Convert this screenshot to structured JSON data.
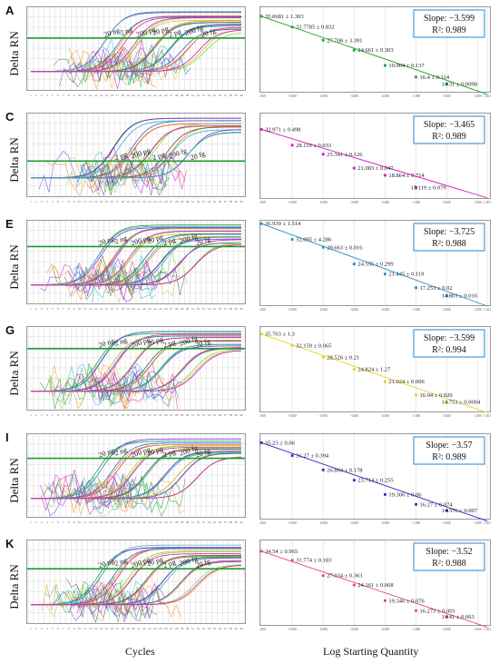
{
  "footer": {
    "left": "Cycles",
    "right": "Log Starting Quantity"
  },
  "axis_ylabel": "Delta RN",
  "cycle_ticks": [
    "1",
    "2",
    "3",
    "4",
    "5",
    "6",
    "7",
    "8",
    "9",
    "10",
    "11",
    "12",
    "13",
    "14",
    "15",
    "16",
    "17",
    "18",
    "19",
    "20",
    "21",
    "22",
    "23",
    "24",
    "25",
    "26",
    "27",
    "28",
    "29",
    "30",
    "31",
    "32",
    "33",
    "34",
    "35",
    "36",
    "37",
    "38",
    "39",
    "40"
  ],
  "std_ticks": [
    "-6.000",
    "-5.000",
    "-4.000",
    "-3.000",
    "-2.000",
    "-1.000",
    "0.000",
    "1.000",
    "1.301"
  ],
  "chart_data": [
    {
      "id": "A",
      "type": "line",
      "ylabel": "Delta RN",
      "xlabel": "Cycles",
      "threshold_frac": 0.38,
      "color": "#8a2be2",
      "curve_labels": [
        "20 ng",
        "2 ng",
        "200 pg",
        "20 pg",
        "2 pg",
        "200 fg",
        "20 fg"
      ],
      "onsets": [
        14,
        17,
        20,
        23,
        26,
        29,
        32
      ]
    },
    {
      "id": "B",
      "type": "scatter",
      "xlabel": "Log Starting Quantity",
      "color": "#1aa329",
      "slope": "Slope: −3.599",
      "r2": "R²:  0.989",
      "points": [
        {
          "x": -6.0,
          "y": 35.0681,
          "label": "35.0681 ± 1.303"
        },
        {
          "x": -5.0,
          "y": 31.7785,
          "label": "31.7785 ± 0.832"
        },
        {
          "x": -4.0,
          "y": 27.708,
          "label": "27.708 ± 3.391"
        },
        {
          "x": -3.0,
          "y": 24.661,
          "label": "24.661 ± 0.303"
        },
        {
          "x": -2.0,
          "y": 19.964,
          "label": "19.964 ± 0.137"
        },
        {
          "x": -1.0,
          "y": 16.4,
          "label": "16.4 ± 0.114"
        },
        {
          "x": 0.0,
          "y": 14.31,
          "label": "14.31 ± 0.0098"
        }
      ]
    },
    {
      "id": "C",
      "type": "line",
      "ylabel": "Delta RN",
      "xlabel": "Cycles",
      "threshold_frac": 0.58,
      "color": "#9a6acc",
      "curve_labels": [
        "2 pg",
        "200 pg",
        "2 pg",
        "200 fg",
        "20 fg"
      ],
      "onsets": [
        16,
        19,
        23,
        26,
        30
      ]
    },
    {
      "id": "D",
      "type": "scatter",
      "xlabel": "Log Starting Quantity",
      "color": "#d214c8",
      "slope": "Slope: −3.465",
      "r2": "R²:  0.989",
      "points": [
        {
          "x": -6.0,
          "y": 32.971,
          "label": "32.971 ± 0.498"
        },
        {
          "x": -5.0,
          "y": 28.119,
          "label": "28.119 ± 0.033"
        },
        {
          "x": -4.0,
          "y": 25.341,
          "label": "25.341 ± 0.126"
        },
        {
          "x": -3.0,
          "y": 21.083,
          "label": "21.083 ± 0.047"
        },
        {
          "x": -2.0,
          "y": 18.864,
          "label": "18.864 ± 0.714"
        },
        {
          "x": -1.0,
          "y": 15.119,
          "label": "15.119 ± 0.079"
        }
      ]
    },
    {
      "id": "E",
      "type": "line",
      "ylabel": "Delta RN",
      "xlabel": "Cycles",
      "threshold_frac": 0.32,
      "color": "#e91e8c",
      "curve_labels": [
        "20 ng",
        "2 ng",
        "200 pg",
        "20 pg",
        "2 pg",
        "200 fg",
        "20 fg"
      ],
      "onsets": [
        13,
        16,
        19,
        22,
        25,
        28,
        31
      ]
    },
    {
      "id": "F",
      "type": "scatter",
      "xlabel": "Log Starting Quantity",
      "color": "#1e8fd0",
      "slope": "Slope: −3.725",
      "r2": "R²:  0.988",
      "points": [
        {
          "x": -6.0,
          "y": 36.939,
          "label": "36.939 ± 1.514"
        },
        {
          "x": -5.0,
          "y": 32.095,
          "label": "32.095 ± 4.286"
        },
        {
          "x": -4.0,
          "y": 29.663,
          "label": "29.663 ± 0.016"
        },
        {
          "x": -3.0,
          "y": 24.555,
          "label": "24.555 ± 0.299"
        },
        {
          "x": -2.0,
          "y": 21.445,
          "label": "21.445 ± 0.119"
        },
        {
          "x": -1.0,
          "y": 17.253,
          "label": "17.253 ± 0.02"
        },
        {
          "x": 0.0,
          "y": 14.803,
          "label": "14.803 ± 0.016"
        }
      ]
    },
    {
      "id": "G",
      "type": "line",
      "ylabel": "Delta RN",
      "xlabel": "Cycles",
      "threshold_frac": 0.27,
      "color": "#3cb4c8",
      "curve_labels": [
        "20 ng",
        "2 ng",
        "200 pg",
        "20 pg",
        "2 pg",
        "200 fg",
        "20 fg"
      ],
      "onsets": [
        13,
        16,
        19,
        22,
        25,
        28,
        31
      ]
    },
    {
      "id": "H",
      "type": "scatter",
      "xlabel": "Log Starting Quantity",
      "color": "#e6d21e",
      "slope": "Slope: −3.599",
      "r2": "R²:  0.994",
      "points": [
        {
          "x": -6.0,
          "y": 35.703,
          "label": "35.703 ± 1.3"
        },
        {
          "x": -5.0,
          "y": 32.159,
          "label": "32.159 ± 0.065"
        },
        {
          "x": -4.0,
          "y": 28.526,
          "label": "28.526 ± 0.21"
        },
        {
          "x": -3.0,
          "y": 24.824,
          "label": "24.824 ± 1.27"
        },
        {
          "x": -2.0,
          "y": 21.024,
          "label": "21.024 ± 0.006"
        },
        {
          "x": -1.0,
          "y": 16.94,
          "label": "16.94 ± 0.020"
        },
        {
          "x": 0.0,
          "y": 14.753,
          "label": "14.753 ± 0.0004"
        }
      ]
    },
    {
      "id": "I",
      "type": "line",
      "ylabel": "Delta RN",
      "xlabel": "Cycles",
      "threshold_frac": 0.3,
      "color": "#2c6ed0",
      "curve_labels": [
        "20 ng",
        "2 ng",
        "200 pg",
        "20 pg",
        "2 pg",
        "200 fg",
        "20 fg"
      ],
      "onsets": [
        13,
        16,
        19,
        22,
        25,
        28,
        31
      ]
    },
    {
      "id": "J",
      "type": "scatter",
      "xlabel": "Log Starting Quantity",
      "color": "#2a2ac8",
      "slope": "Slope: −3.57",
      "r2": "R²:  0.989",
      "points": [
        {
          "x": -6.0,
          "y": 35.23,
          "label": "35.23 ± 0.06"
        },
        {
          "x": -5.0,
          "y": 31.27,
          "label": "31.27 ± 0.394"
        },
        {
          "x": -4.0,
          "y": 26.864,
          "label": "26.864 ± 0.178"
        },
        {
          "x": -3.0,
          "y": 23.714,
          "label": "23.714 ± 0.255"
        },
        {
          "x": -2.0,
          "y": 19.306,
          "label": "19.306 ± 0.06"
        },
        {
          "x": -1.0,
          "y": 16.27,
          "label": "16.27 ± 0.074"
        },
        {
          "x": 0.0,
          "y": 14.376,
          "label": "14.376 ± 0.007"
        }
      ]
    },
    {
      "id": "K",
      "type": "line",
      "ylabel": "Delta RN",
      "xlabel": "Cycles",
      "threshold_frac": 0.35,
      "color": "#c8c832",
      "curve_labels": [
        "20 ng",
        "2 ng",
        "200 pg",
        "20 pg",
        "2 pg",
        "200 fg",
        "20 fg"
      ],
      "onsets": [
        13,
        16,
        19,
        22,
        25,
        28,
        31
      ]
    },
    {
      "id": "L",
      "type": "scatter",
      "xlabel": "Log Starting Quantity",
      "color": "#e8447a",
      "slope": "Slope: −3.52",
      "r2": "R²:  0.988",
      "points": [
        {
          "x": -6.0,
          "y": 34.54,
          "label": "34.54 ± 0.965"
        },
        {
          "x": -5.0,
          "y": 31.774,
          "label": "31.774 ± 0.183"
        },
        {
          "x": -4.0,
          "y": 27.034,
          "label": "27.034 ± 0.363"
        },
        {
          "x": -3.0,
          "y": 24.161,
          "label": "24.161 ± 0.068"
        },
        {
          "x": -2.0,
          "y": 19.346,
          "label": "19.346 ± 0.076"
        },
        {
          "x": -1.0,
          "y": 16.273,
          "label": "16.273 ± 0.001"
        },
        {
          "x": 0.0,
          "y": 14.41,
          "label": "14.41 ± 0.063"
        }
      ]
    }
  ]
}
